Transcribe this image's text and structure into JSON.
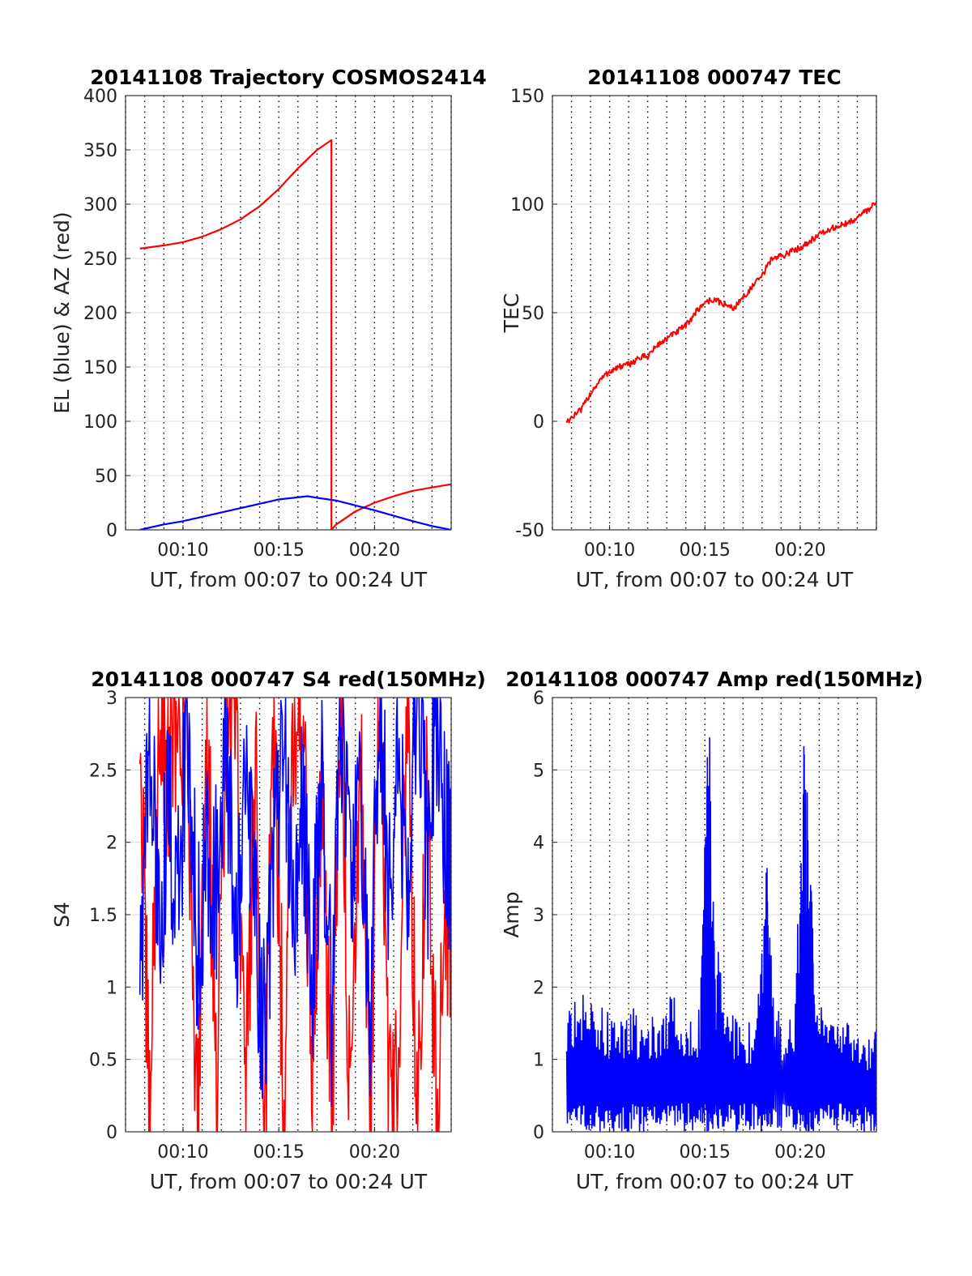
{
  "chart_data": [
    {
      "type": "line",
      "title": "20141108 Trajectory COSMOS2414",
      "xlabel": "UT, from 00:07 to 00:24 UT",
      "ylabel": "EL (blue) & AZ (red)",
      "xlim": [
        "00:07",
        "00:24"
      ],
      "xticks": [
        "00:10",
        "00:15",
        "00:20"
      ],
      "ylim": [
        0,
        400
      ],
      "yticks": [
        "0",
        "50",
        "100",
        "150",
        "200",
        "250",
        "300",
        "350",
        "400"
      ],
      "grid": true,
      "series": [
        {
          "color": "#ff0000",
          "x": [
            "00:07:45",
            "00:09",
            "00:10",
            "00:11",
            "00:12",
            "00:13",
            "00:14",
            "00:15",
            "00:16",
            "00:17",
            "00:17:45",
            "00:17:45",
            "00:18",
            "00:19",
            "00:20",
            "00:21",
            "00:22",
            "00:23",
            "00:24"
          ],
          "y": [
            259,
            262,
            265,
            270,
            277,
            286,
            298,
            314,
            333,
            350,
            359,
            0,
            5,
            17,
            25,
            31,
            36,
            39,
            42
          ]
        },
        {
          "color": "#0000ff",
          "x": [
            "00:07:45",
            "00:09",
            "00:10",
            "00:11",
            "00:12",
            "00:13",
            "00:14",
            "00:15",
            "00:16",
            "00:16:30",
            "00:17",
            "00:18",
            "00:19",
            "00:20",
            "00:21",
            "00:22",
            "00:23",
            "00:24"
          ],
          "y": [
            0,
            5,
            8,
            12,
            16,
            20,
            24,
            28,
            30,
            31,
            29.5,
            27,
            22.5,
            18,
            13,
            8,
            3.5,
            0
          ]
        }
      ]
    },
    {
      "type": "line",
      "title": "20141108 000747 TEC",
      "xlabel": "UT, from 00:07 to 00:24 UT",
      "ylabel": "TEC",
      "xlim": [
        "00:07",
        "00:24"
      ],
      "xticks": [
        "00:10",
        "00:15",
        "00:20"
      ],
      "ylim": [
        -50,
        150
      ],
      "yticks": [
        "-50",
        "0",
        "50",
        "100",
        "150"
      ],
      "grid": true,
      "series": [
        {
          "color": "#ff0000",
          "x": [
            "00:07:45",
            "00:08:30",
            "00:09",
            "00:09:30",
            "00:10",
            "00:10:30",
            "00:11",
            "00:11:30",
            "00:12",
            "00:12:30",
            "00:13",
            "00:13:30",
            "00:14",
            "00:14:30",
            "00:15",
            "00:15:30",
            "00:16",
            "00:16:30",
            "00:17",
            "00:17:30",
            "00:18",
            "00:18:30",
            "00:19",
            "00:19:30",
            "00:20",
            "00:20:30",
            "00:21",
            "00:21:30",
            "00:22",
            "00:22:30",
            "00:23",
            "00:23:30",
            "00:24"
          ],
          "y": [
            0,
            5,
            13,
            19,
            23,
            25,
            26,
            29,
            30,
            35,
            38,
            41,
            44,
            50,
            55,
            56,
            54,
            52,
            57,
            62,
            67,
            75,
            76,
            78,
            80,
            83,
            86,
            88,
            90,
            91,
            94,
            97,
            101
          ]
        }
      ]
    },
    {
      "type": "line",
      "title": "20141108 000747 S4 red(150MHz)",
      "xlabel": "UT, from 00:07 to 00:24 UT",
      "ylabel": "S4",
      "xlim": [
        "00:07",
        "00:24"
      ],
      "xticks": [
        "00:10",
        "00:15",
        "00:20"
      ],
      "ylim": [
        0,
        3
      ],
      "yticks": [
        "0",
        "0.5",
        "1",
        "1.5",
        "2",
        "2.5",
        "3"
      ],
      "grid": true,
      "series": [
        {
          "color": "#ff0000",
          "x": [
            "00:07:45",
            "00:08:15",
            "00:08:45",
            "00:09:15",
            "00:09:45",
            "00:10:15",
            "00:10:45",
            "00:11:15",
            "00:11:45",
            "00:12:15",
            "00:12:45",
            "00:13:15",
            "00:13:45",
            "00:14:15",
            "00:14:45",
            "00:15:15",
            "00:15:45",
            "00:16:15",
            "00:16:45",
            "00:17:15",
            "00:17:45",
            "00:18:15",
            "00:18:45",
            "00:19:15",
            "00:19:45",
            "00:20:15",
            "00:20:45",
            "00:21:15",
            "00:21:45",
            "00:22:15",
            "00:22:45",
            "00:23:15",
            "00:23:45",
            "00:24"
          ],
          "y": [
            2.8,
            0,
            2.9,
            2.5,
            3,
            2.7,
            0,
            3,
            0.1,
            2.8,
            3,
            0.2,
            2.6,
            0,
            3,
            0.3,
            2.9,
            3,
            0.1,
            2.7,
            0,
            3,
            0,
            2.8,
            0,
            3,
            0,
            0.4,
            3,
            0,
            2.5,
            0,
            1.5,
            1.4
          ]
        },
        {
          "color": "#0000ff",
          "x": [
            "00:07:45",
            "00:08:15",
            "00:08:45",
            "00:09:15",
            "00:09:45",
            "00:10:15",
            "00:10:45",
            "00:11:15",
            "00:11:45",
            "00:12:15",
            "00:12:45",
            "00:13:15",
            "00:13:45",
            "00:14:15",
            "00:14:45",
            "00:15:15",
            "00:15:45",
            "00:16:15",
            "00:16:45",
            "00:17:15",
            "00:17:45",
            "00:18:15",
            "00:18:45",
            "00:19:15",
            "00:19:45",
            "00:20:15",
            "00:20:45",
            "00:21:15",
            "00:21:45",
            "00:22:15",
            "00:22:45",
            "00:23:15",
            "00:23:45",
            "00:24"
          ],
          "y": [
            1.2,
            2.6,
            1.5,
            2.2,
            1.6,
            2.8,
            1.3,
            2.0,
            1.7,
            2.5,
            1.4,
            2.3,
            1.6,
            0.6,
            1.9,
            2.7,
            1.5,
            2.2,
            1.1,
            2.4,
            0.8,
            2.9,
            1.8,
            2.3,
            0.6,
            3,
            1.7,
            2.6,
            1.6,
            3,
            1.8,
            2.9,
            2.0,
            1.8
          ]
        }
      ]
    },
    {
      "type": "line",
      "title": "20141108 000747 Amp red(150MHz)",
      "xlabel": "UT, from 00:07 to 00:24 UT",
      "ylabel": "Amp",
      "xlim": [
        "00:07",
        "00:24"
      ],
      "xticks": [
        "00:10",
        "00:15",
        "00:20"
      ],
      "ylim": [
        0,
        6
      ],
      "yticks": [
        "0",
        "1",
        "2",
        "3",
        "4",
        "5",
        "6"
      ],
      "grid": true,
      "series": [
        {
          "color": "#0000ff",
          "x": [
            "00:07:45",
            "00:08:15",
            "00:08:45",
            "00:09:15",
            "00:09:45",
            "00:10:15",
            "00:10:45",
            "00:11:15",
            "00:11:45",
            "00:12:15",
            "00:12:45",
            "00:13:15",
            "00:13:45",
            "00:14:15",
            "00:14:45",
            "00:15:05",
            "00:15:15",
            "00:15:35",
            "00:15:45",
            "00:16:15",
            "00:16:45",
            "00:17:15",
            "00:17:45",
            "00:18:10",
            "00:18:20",
            "00:18:35",
            "00:19:15",
            "00:19:45",
            "00:20:10",
            "00:20:20",
            "00:20:35",
            "00:20:45",
            "00:21:15",
            "00:21:45",
            "00:22:15",
            "00:22:45",
            "00:23:15",
            "00:23:45",
            "00:24"
          ],
          "y": [
            1.5,
            2.1,
            1.8,
            1.9,
            1.7,
            1.6,
            1.5,
            1.7,
            1.4,
            1.6,
            1.5,
            2.0,
            1.5,
            1.6,
            1.7,
            5.3,
            5.5,
            1.8,
            2.8,
            1.7,
            1.6,
            1.5,
            1.6,
            3.7,
            3.8,
            1.9,
            1.5,
            1.8,
            5.9,
            4.8,
            4.2,
            1.9,
            1.7,
            1.6,
            1.5,
            1.6,
            1.4,
            1.4,
            1.4
          ]
        }
      ]
    }
  ]
}
